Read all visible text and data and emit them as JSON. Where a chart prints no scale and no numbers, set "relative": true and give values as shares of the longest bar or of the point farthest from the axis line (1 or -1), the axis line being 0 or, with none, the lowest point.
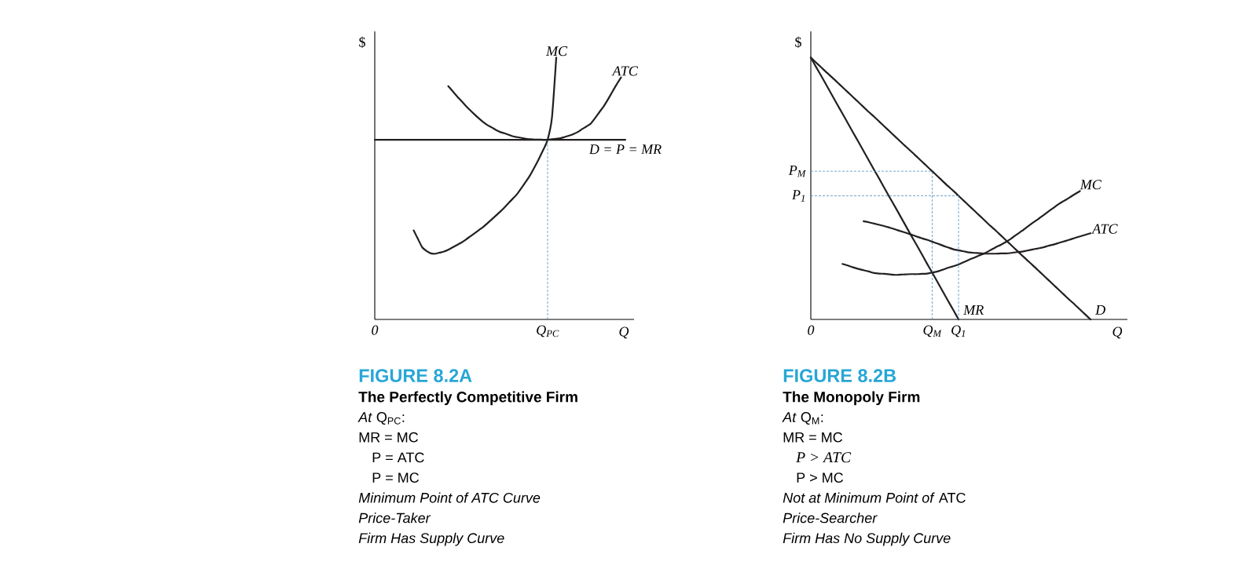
{
  "chart_data": [
    {
      "type": "line",
      "relative": true,
      "title": "FIGURE 8.2A",
      "subtitle": "The Perfectly Competitive Firm",
      "xlabel": "Q",
      "ylabel": "$",
      "categories": [
        "0",
        null,
        null,
        null,
        null,
        null,
        null,
        null,
        null,
        null,
        null,
        null,
        null,
        null,
        null,
        null,
        null,
        null,
        null,
        null,
        null,
        null,
        null,
        null,
        null,
        null,
        null,
        null,
        null,
        null,
        null,
        null,
        null,
        null,
        null,
        null,
        null,
        null,
        null,
        null,
        "Q$_{PC}$",
        null,
        null,
        null,
        null,
        null,
        null,
        null,
        null,
        null,
        null,
        null,
        null,
        null,
        null,
        null,
        null,
        null,
        null
      ],
      "series": [
        {
          "name": "MC",
          "color": "#231f20",
          "values": [
            null,
            null,
            null,
            null,
            null,
            null,
            null,
            null,
            null,
            0.34,
            0.307,
            0.275,
            0.261,
            0.252,
            0.251,
            0.255,
            0.259,
            0.266,
            0.275,
            0.284,
            0.293,
            0.304,
            0.316,
            0.328,
            0.34,
            0.352,
            0.366,
            0.381,
            0.396,
            0.411,
            0.427,
            0.445,
            0.462,
            0.48,
            0.503,
            0.527,
            0.552,
            0.582,
            0.614,
            0.648,
            0.686,
            0.77,
            1,
            null,
            null,
            null,
            null,
            null,
            null,
            null,
            null,
            null,
            null,
            null,
            null,
            null,
            null,
            null,
            null
          ]
        },
        {
          "name": "ATC",
          "color": "#231f20",
          "values": [
            null,
            null,
            null,
            null,
            null,
            null,
            null,
            null,
            null,
            null,
            null,
            null,
            null,
            null,
            null,
            null,
            null,
            0.891,
            0.872,
            0.853,
            0.835,
            0.817,
            0.8,
            0.784,
            0.769,
            0.755,
            0.743,
            0.734,
            0.724,
            0.716,
            0.711,
            0.705,
            0.699,
            0.696,
            0.693,
            0.69,
            0.688,
            0.687,
            0.687,
            0.686,
            0.686,
            0.688,
            0.69,
            0.692,
            0.697,
            0.702,
            0.708,
            0.716,
            0.727,
            0.737,
            0.748,
            0.769,
            0.792,
            0.814,
            0.841,
            0.87,
            0.898,
            0.924,
            null
          ]
        },
        {
          "name": "D = P = MR",
          "color": "#231f20",
          "values": [
            0.686,
            0.686,
            0.686,
            0.686,
            0.686,
            0.686,
            0.686,
            0.686,
            0.686,
            0.686,
            0.686,
            0.686,
            0.686,
            0.686,
            0.686,
            0.686,
            0.686,
            0.686,
            0.686,
            0.686,
            0.686,
            0.686,
            0.686,
            0.686,
            0.686,
            0.686,
            0.686,
            0.686,
            0.686,
            0.686,
            0.686,
            0.686,
            0.686,
            0.686,
            0.686,
            0.686,
            0.686,
            0.686,
            0.686,
            0.686,
            0.686,
            0.686,
            0.686,
            0.686,
            0.686,
            0.686,
            0.686,
            0.686,
            0.686,
            0.686,
            0.686,
            0.686,
            0.686,
            0.686,
            0.686,
            0.686,
            0.686,
            0.686,
            0.686
          ]
        }
      ],
      "ref_lines": [
        {
          "axis": "x",
          "value": "Q$_{PC}$",
          "color": "#4a8ec2",
          "line_style": "dashed"
        }
      ],
      "annotations": [
        "*At* Q$_{PC}$:",
        "MR = MC",
        "P = ATC",
        "P = MC",
        "Minimum Point of ATC Curve",
        "Price-Taker",
        "Firm Has Supply Curve"
      ]
    },
    {
      "type": "line",
      "relative": true,
      "title": "FIGURE 8.2B",
      "subtitle": "The Monopoly Firm",
      "xlabel": "Q",
      "ylabel": "$",
      "categories": [
        "0",
        null,
        null,
        null,
        null,
        null,
        null,
        null,
        null,
        null,
        null,
        null,
        null,
        null,
        null,
        null,
        null,
        null,
        null,
        null,
        null,
        null,
        null,
        "Q$_{M}$",
        null,
        null,
        null,
        null,
        "Q$_{1}$",
        null,
        null,
        null,
        null,
        null,
        null,
        null,
        null,
        null,
        null,
        null,
        null,
        null,
        null,
        null,
        null,
        null,
        null,
        null,
        null,
        null,
        null,
        null,
        null,
        null
      ],
      "series": [
        {
          "name": "D",
          "color": "#231f20",
          "values": [
            1,
            0.981,
            0.962,
            0.943,
            0.925,
            0.906,
            0.887,
            0.868,
            0.849,
            0.83,
            0.811,
            0.792,
            0.774,
            0.755,
            0.736,
            0.717,
            0.698,
            0.679,
            0.66,
            0.642,
            0.623,
            0.604,
            0.585,
            0.566,
            0.547,
            0.528,
            0.509,
            0.491,
            0.472,
            0.453,
            0.434,
            0.415,
            0.396,
            0.377,
            0.358,
            0.34,
            0.321,
            0.302,
            0.283,
            0.264,
            0.245,
            0.226,
            0.208,
            0.189,
            0.17,
            0.151,
            0.132,
            0.113,
            0.094,
            0.075,
            0.057,
            0.038,
            0.019,
            0
          ]
        },
        {
          "name": "MR",
          "color": "#231f20",
          "values": [
            1,
            0.964,
            0.929,
            0.893,
            0.857,
            0.821,
            0.786,
            0.75,
            0.714,
            0.679,
            0.643,
            0.607,
            0.571,
            0.536,
            0.5,
            0.464,
            0.429,
            0.393,
            0.357,
            0.321,
            0.286,
            0.25,
            0.214,
            0.179,
            0.143,
            0.107,
            0.071,
            0.036,
            0,
            null,
            null,
            null,
            null,
            null,
            null,
            null,
            null,
            null,
            null,
            null,
            null,
            null,
            null,
            null,
            null,
            null,
            null,
            null,
            null,
            null,
            null,
            null,
            null,
            null
          ]
        },
        {
          "name": "MC",
          "color": "#231f20",
          "values": [
            null,
            null,
            null,
            null,
            null,
            null,
            0.212,
            0.206,
            0.199,
            0.193,
            0.188,
            0.183,
            0.177,
            0.175,
            0.174,
            0.172,
            0.17,
            0.171,
            0.172,
            0.173,
            0.173,
            0.174,
            0.175,
            0.179,
            0.183,
            0.19,
            0.197,
            0.203,
            0.21,
            0.219,
            0.228,
            0.236,
            0.245,
            0.253,
            0.264,
            0.275,
            0.285,
            0.296,
            0.309,
            0.324,
            0.338,
            0.353,
            0.368,
            0.382,
            0.397,
            0.412,
            0.426,
            0.441,
            0.453,
            0.465,
            0.478,
            0.49,
            null,
            null
          ]
        },
        {
          "name": "ATC",
          "color": "#231f20",
          "values": [
            null,
            null,
            null,
            null,
            null,
            null,
            null,
            null,
            null,
            null,
            0.375,
            0.371,
            0.366,
            0.361,
            0.356,
            0.35,
            0.344,
            0.337,
            0.331,
            0.324,
            0.317,
            0.31,
            0.304,
            0.297,
            0.29,
            0.282,
            0.275,
            0.268,
            0.264,
            0.26,
            0.256,
            0.254,
            0.253,
            0.251,
            0.251,
            0.251,
            0.252,
            0.252,
            0.254,
            0.257,
            0.259,
            0.263,
            0.267,
            0.271,
            0.275,
            0.281,
            0.286,
            0.292,
            0.298,
            0.304,
            0.311,
            0.317,
            0.323,
            0.329
          ]
        }
      ],
      "ref_lines": [
        {
          "axis": "x",
          "value": "Q$_{M}$",
          "color": "#4a8ec2",
          "line_style": "dashed"
        },
        {
          "axis": "x",
          "value": "Q$_{1}$",
          "color": "#4a8ec2",
          "line_style": "dashed"
        },
        {
          "axis": "y",
          "value": 0.566,
          "label": "P$_{M}$",
          "color": "#4a8ec2",
          "line_style": "dashed"
        },
        {
          "axis": "y",
          "value": 0.472,
          "label": "P$_{1}$",
          "color": "#4a8ec2",
          "line_style": "dashed"
        }
      ],
      "annotations": [
        "*At* Q$_{M}$:",
        "MR = MC",
        "P > ATC",
        "P > MC",
        "*Not at Minimum Point of* ATC",
        "Price-Searcher",
        "Firm Has No Supply Curve"
      ]
    }
  ]
}
